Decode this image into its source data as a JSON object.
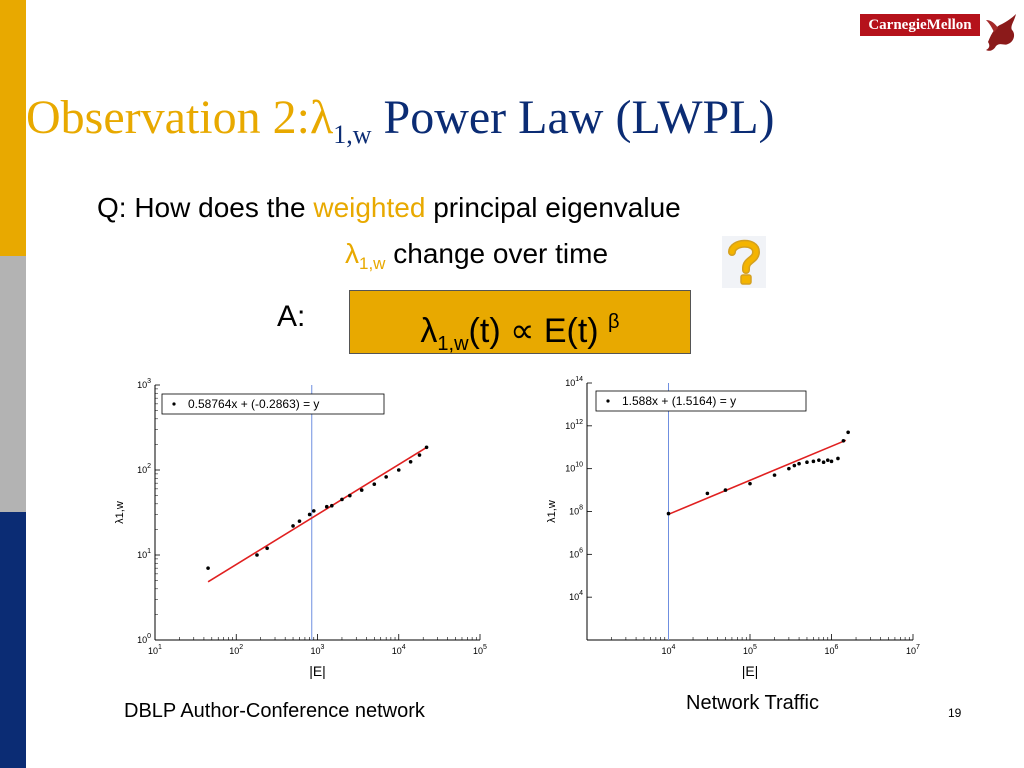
{
  "slide": {
    "title_prefix": "Observation 2:",
    "title_lambda": "λ",
    "title_sub": "1,w",
    "title_suffix": " Power Law (LWPL)",
    "q_part1": "Q: How does the ",
    "q_weighted": "weighted",
    "q_part2": " principal eigenvalue",
    "q_lambda": "λ",
    "q_lambda_sub": "1,w",
    "q_part3": " change over time",
    "a_label": "A:",
    "formula_lambda": "λ",
    "formula_sub": "1,w",
    "formula_mid": "(t) ∝ E(t) ",
    "formula_sup": "β",
    "caption_left": "DBLP Author-Conference network",
    "caption_right": "Network Traffic",
    "page_number": "19",
    "logo_text": "CarnegieMellon"
  },
  "colors": {
    "orange": "#E8A900",
    "navy": "#0B2C74",
    "gray": "#B3B3B3",
    "cmu_red": "#B5121B",
    "fit_line": "#E02020",
    "vline": "#6F8FE0"
  },
  "chart_data": [
    {
      "type": "scatter",
      "log_x": true,
      "log_y": true,
      "xlim": [
        10,
        100000
      ],
      "ylim": [
        1,
        1000
      ],
      "xlabel": "|E|",
      "ylabel": "λ1,w",
      "x_ticks": [
        {
          "v": 10,
          "label": "10^1"
        },
        {
          "v": 100,
          "label": "10^2"
        },
        {
          "v": 1000,
          "label": "10^3"
        },
        {
          "v": 10000,
          "label": "10^4"
        },
        {
          "v": 100000,
          "label": "10^5"
        }
      ],
      "y_ticks": [
        {
          "v": 1,
          "label": "10^0"
        },
        {
          "v": 10,
          "label": "10^1"
        },
        {
          "v": 100,
          "label": "10^2"
        },
        {
          "v": 1000,
          "label": "10^3"
        }
      ],
      "legend_text": "0.58764x + (-0.2863) = y",
      "fit": {
        "slope": 0.58764,
        "intercept": -0.2863,
        "x_range": [
          45,
          22000
        ]
      },
      "vline_x": 850,
      "points": [
        [
          45,
          7
        ],
        [
          180,
          10
        ],
        [
          240,
          12
        ],
        [
          500,
          22
        ],
        [
          600,
          25
        ],
        [
          800,
          30
        ],
        [
          900,
          33
        ],
        [
          1300,
          37
        ],
        [
          1500,
          38
        ],
        [
          2000,
          45
        ],
        [
          2500,
          50
        ],
        [
          3500,
          58
        ],
        [
          5000,
          68
        ],
        [
          7000,
          83
        ],
        [
          10000,
          100
        ],
        [
          14000,
          125
        ],
        [
          18000,
          150
        ],
        [
          22000,
          185
        ]
      ]
    },
    {
      "type": "scatter",
      "log_x": true,
      "log_y": true,
      "xlim": [
        1000,
        10000000
      ],
      "ylim": [
        100,
        100000000000000
      ],
      "xlabel": "|E|",
      "ylabel": "λ1,w",
      "x_ticks": [
        {
          "v": 1000,
          "label": ""
        },
        {
          "v": 10000,
          "label": "10^4"
        },
        {
          "v": 100000,
          "label": "10^5"
        },
        {
          "v": 1000000,
          "label": "10^6"
        },
        {
          "v": 10000000,
          "label": "10^7"
        }
      ],
      "y_ticks": [
        {
          "v": 10000,
          "label": "10^4"
        },
        {
          "v": 1000000,
          "label": "10^6"
        },
        {
          "v": 100000000,
          "label": "10^8"
        },
        {
          "v": 10000000000,
          "label": "10^10"
        },
        {
          "v": 1000000000000,
          "label": "10^12"
        },
        {
          "v": 100000000000000,
          "label": "10^14"
        }
      ],
      "legend_text": "1.588x + (1.5164) = y",
      "fit": {
        "slope": 1.588,
        "intercept": 1.5164,
        "x_range": [
          10000,
          1500000
        ]
      },
      "vline_x": 10000,
      "points": [
        [
          10000,
          80000000
        ],
        [
          30000,
          700000000
        ],
        [
          50000,
          1000000000
        ],
        [
          100000,
          2000000000
        ],
        [
          200000,
          5000000000
        ],
        [
          300000,
          10000000000
        ],
        [
          350000,
          14000000000
        ],
        [
          400000,
          17000000000
        ],
        [
          500000,
          20000000000
        ],
        [
          600000,
          22000000000
        ],
        [
          700000,
          25000000000
        ],
        [
          800000,
          20000000000
        ],
        [
          900000,
          25000000000
        ],
        [
          1000000,
          22000000000
        ],
        [
          1200000,
          30000000000
        ],
        [
          1400000,
          200000000000
        ],
        [
          1600000,
          500000000000
        ]
      ]
    }
  ]
}
